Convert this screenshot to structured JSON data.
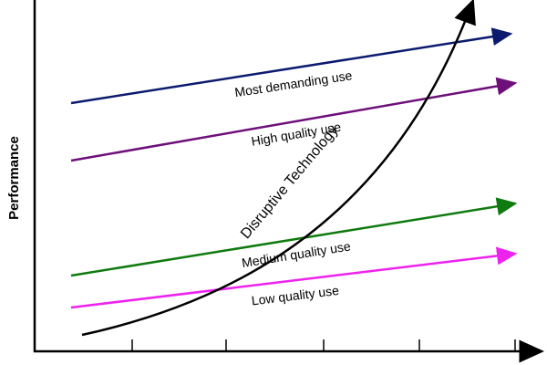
{
  "axis": {
    "y_label": "Performance"
  },
  "trajectories": [
    {
      "label": "Most demanding use"
    },
    {
      "label": "High quality use"
    },
    {
      "label": "Medium quality use"
    },
    {
      "label": "Low quality use"
    }
  ],
  "disruptive": {
    "label": "Disruptive Technology"
  }
}
